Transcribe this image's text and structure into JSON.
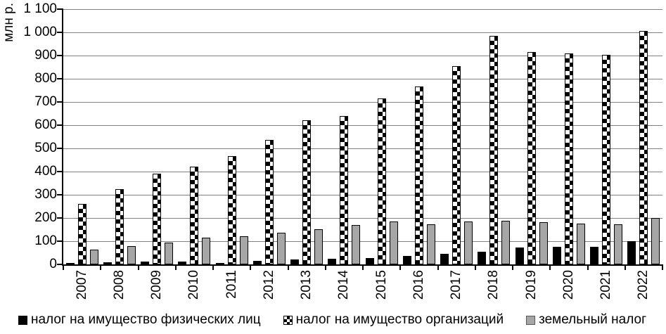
{
  "chart_data": {
    "type": "bar",
    "title": "",
    "xlabel": "",
    "ylabel": "млн р.",
    "ylim": [
      0,
      1100
    ],
    "ytick_step": 100,
    "ytick_labels": [
      "0",
      "100",
      "200",
      "300",
      "400",
      "500",
      "600",
      "700",
      "800",
      "900",
      "1 000",
      "1 100"
    ],
    "grid": true,
    "legend_position": "bottom",
    "categories": [
      "2007",
      "2008",
      "2009",
      "2010",
      "2011",
      "2012",
      "2013",
      "2014",
      "2015",
      "2016",
      "2017",
      "2018",
      "2019",
      "2020",
      "2021",
      "2022"
    ],
    "series": [
      {
        "name": "налог  на имущество физических лиц",
        "style": "solid-black",
        "color": "#000000",
        "values": [
          5,
          8,
          13,
          12,
          3,
          15,
          21,
          25,
          28,
          35,
          46,
          56,
          72,
          75,
          75,
          101
        ]
      },
      {
        "name": "налог на имущество организаций",
        "style": "checkerboard-black-white",
        "color": "#000000",
        "values": [
          260,
          325,
          390,
          422,
          467,
          535,
          620,
          638,
          714,
          766,
          855,
          985,
          915,
          908,
          903,
          1005
        ]
      },
      {
        "name": "земельный налог",
        "style": "solid-gray",
        "color": "#a6a6a6",
        "values": [
          65,
          80,
          93,
          115,
          120,
          135,
          152,
          170,
          184,
          173,
          185,
          187,
          181,
          176,
          172,
          200
        ]
      }
    ],
    "colors": {
      "axis": "#000000",
      "grid": "#808080",
      "background": "#ffffff"
    }
  }
}
